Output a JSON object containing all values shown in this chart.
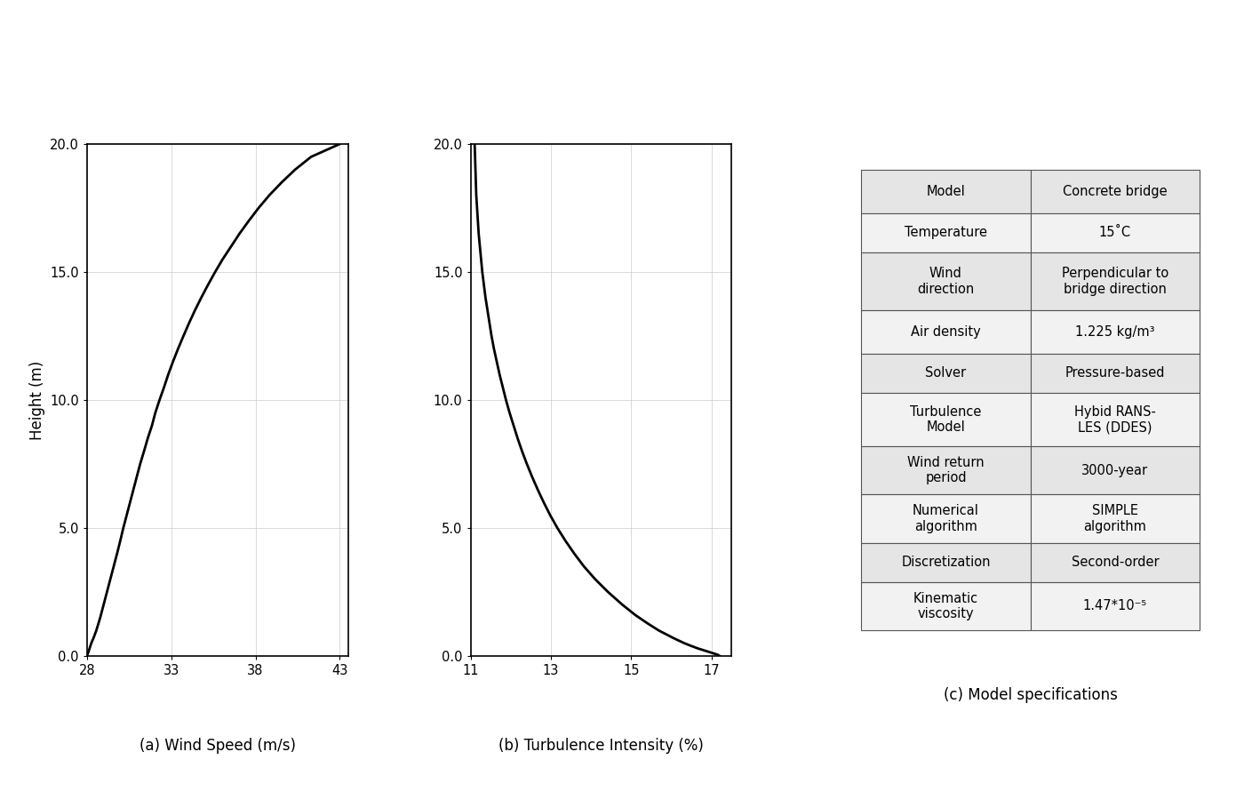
{
  "wind_speed": {
    "heights": [
      0.0,
      0.05,
      0.1,
      0.2,
      0.3,
      0.5,
      0.7,
      1.0,
      1.5,
      2.0,
      2.5,
      3.0,
      3.5,
      4.0,
      4.5,
      5.0,
      5.5,
      6.0,
      6.5,
      7.0,
      7.5,
      8.0,
      8.5,
      9.0,
      9.5,
      10.0,
      10.5,
      11.0,
      11.5,
      12.0,
      12.5,
      13.0,
      13.5,
      14.0,
      14.5,
      15.0,
      15.5,
      16.0,
      16.5,
      17.0,
      17.5,
      18.0,
      18.5,
      19.0,
      19.5,
      20.0
    ],
    "speeds": [
      28.0,
      28.02,
      28.05,
      28.1,
      28.15,
      28.25,
      28.38,
      28.55,
      28.78,
      28.98,
      29.18,
      29.38,
      29.58,
      29.78,
      29.97,
      30.15,
      30.35,
      30.55,
      30.75,
      30.95,
      31.15,
      31.38,
      31.6,
      31.85,
      32.05,
      32.3,
      32.57,
      32.82,
      33.1,
      33.4,
      33.72,
      34.05,
      34.4,
      34.78,
      35.18,
      35.6,
      36.05,
      36.55,
      37.05,
      37.6,
      38.18,
      38.82,
      39.55,
      40.35,
      41.3,
      43.0
    ],
    "xlim": [
      28,
      43.5
    ],
    "xticks": [
      28,
      33,
      38,
      43
    ],
    "ylim": [
      0,
      20
    ],
    "yticks": [
      0.0,
      5.0,
      10.0,
      15.0,
      20.0
    ],
    "xlabel": "(a) Wind Speed (m/s)",
    "ylabel": "Height (m)"
  },
  "turbulence": {
    "heights": [
      0.0,
      0.05,
      0.1,
      0.15,
      0.2,
      0.3,
      0.4,
      0.5,
      0.7,
      1.0,
      1.3,
      1.6,
      2.0,
      2.5,
      3.0,
      3.5,
      4.0,
      4.5,
      5.0,
      5.5,
      6.0,
      6.5,
      7.0,
      7.5,
      8.0,
      8.5,
      9.0,
      9.5,
      10.0,
      10.5,
      11.0,
      11.5,
      12.0,
      12.5,
      13.0,
      13.5,
      14.0,
      14.5,
      15.0,
      15.5,
      16.0,
      16.5,
      17.0,
      17.5,
      18.0,
      18.5,
      19.0,
      19.5,
      20.0
    ],
    "intensities": [
      17.2,
      17.15,
      17.05,
      16.95,
      16.85,
      16.65,
      16.48,
      16.32,
      16.05,
      15.68,
      15.38,
      15.1,
      14.78,
      14.42,
      14.1,
      13.82,
      13.58,
      13.36,
      13.16,
      12.98,
      12.82,
      12.67,
      12.53,
      12.4,
      12.28,
      12.17,
      12.07,
      11.97,
      11.88,
      11.8,
      11.72,
      11.65,
      11.58,
      11.52,
      11.47,
      11.42,
      11.37,
      11.33,
      11.29,
      11.26,
      11.23,
      11.2,
      11.18,
      11.16,
      11.14,
      11.13,
      11.12,
      11.11,
      11.1
    ],
    "xlim": [
      11,
      17.5
    ],
    "xticks": [
      11,
      13,
      15,
      17
    ],
    "ylim": [
      0,
      20
    ],
    "yticks": [
      0.0,
      5.0,
      10.0,
      15.0,
      20.0
    ],
    "xlabel": "(b) Turbulence Intensity (%)"
  },
  "table": {
    "rows": [
      [
        "Model",
        "Concrete bridge"
      ],
      [
        "Temperature",
        "15˚C"
      ],
      [
        "Wind\ndirection",
        "Perpendicular to\nbridge direction"
      ],
      [
        "Air density",
        "1.225 kg/m³"
      ],
      [
        "Solver",
        "Pressure-based"
      ],
      [
        "Turbulence\nModel",
        "Hybid RANS-\nLES (DDES)"
      ],
      [
        "Wind return\nperiod",
        "3000-year"
      ],
      [
        "Numerical\nalgorithm",
        "SIMPLE\nalgorithm"
      ],
      [
        "Discretization",
        "Second-order"
      ],
      [
        "Kinematic\nviscosity",
        "1.47*10⁻⁵"
      ]
    ],
    "caption": "(c) Model specifications",
    "row_heights": [
      0.09,
      0.08,
      0.12,
      0.09,
      0.08,
      0.11,
      0.1,
      0.1,
      0.08,
      0.1
    ]
  },
  "figure_bg": "#ffffff",
  "line_color": "#000000",
  "grid_color": "#cccccc",
  "grid_linewidth": 0.5,
  "line_width": 2.0,
  "font_size": 11,
  "label_font_size": 12,
  "tick_font_size": 10.5,
  "table_font_size": 10.5,
  "table_edge_color": "#555555",
  "table_face_color": "#f2f2f2",
  "table_header_color": "#e5e5e5"
}
